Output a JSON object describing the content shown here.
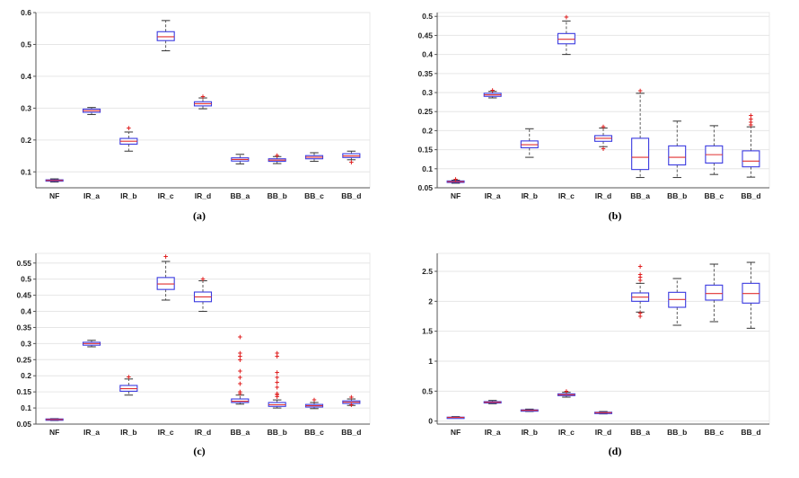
{
  "colors": {
    "box": "#3a3ae0",
    "median": "#e03030",
    "whisker": "#333333",
    "outlier": "#e02020",
    "grid": "#e6e6e6",
    "axis": "#555555"
  },
  "chart_data": [
    {
      "type": "box",
      "caption": "(a)",
      "categories": [
        "NF",
        "IR_a",
        "IR_b",
        "IR_c",
        "IR_d",
        "BB_a",
        "BB_b",
        "BB_c",
        "BB_d"
      ],
      "ylim": [
        0.05,
        0.6
      ],
      "yticks": [
        0.1,
        0.2,
        0.3,
        0.4,
        0.5,
        0.6
      ],
      "ytick_labels": [
        "0.1",
        "0.2",
        "0.3",
        "0.4",
        "0.5",
        "0.6"
      ],
      "grid": true,
      "boxes": [
        {
          "min": 0.068,
          "q1": 0.071,
          "median": 0.073,
          "q3": 0.075,
          "max": 0.078,
          "outliers": []
        },
        {
          "min": 0.28,
          "q1": 0.287,
          "median": 0.292,
          "q3": 0.297,
          "max": 0.302,
          "outliers": []
        },
        {
          "min": 0.165,
          "q1": 0.187,
          "median": 0.196,
          "q3": 0.205,
          "max": 0.225,
          "outliers": [
            0.237
          ]
        },
        {
          "min": 0.48,
          "q1": 0.512,
          "median": 0.524,
          "q3": 0.54,
          "max": 0.575,
          "outliers": []
        },
        {
          "min": 0.298,
          "q1": 0.307,
          "median": 0.314,
          "q3": 0.32,
          "max": 0.332,
          "outliers": [
            0.336
          ]
        },
        {
          "min": 0.125,
          "q1": 0.134,
          "median": 0.139,
          "q3": 0.144,
          "max": 0.155,
          "outliers": []
        },
        {
          "min": 0.126,
          "q1": 0.133,
          "median": 0.137,
          "q3": 0.141,
          "max": 0.148,
          "outliers": [
            0.152
          ]
        },
        {
          "min": 0.133,
          "q1": 0.141,
          "median": 0.146,
          "q3": 0.151,
          "max": 0.16,
          "outliers": []
        },
        {
          "min": 0.138,
          "q1": 0.145,
          "median": 0.15,
          "q3": 0.157,
          "max": 0.165,
          "outliers": [
            0.131
          ]
        }
      ]
    },
    {
      "type": "box",
      "caption": "(b)",
      "categories": [
        "NF",
        "IR_a",
        "IR_b",
        "IR_c",
        "IR_d",
        "BB_a",
        "BB_b",
        "BB_c",
        "BB_d"
      ],
      "ylim": [
        0.05,
        0.51
      ],
      "yticks": [
        0.05,
        0.1,
        0.15,
        0.2,
        0.25,
        0.3,
        0.35,
        0.4,
        0.45,
        0.5
      ],
      "ytick_labels": [
        "0.05",
        "0.1",
        "0.15",
        "0.2",
        "0.25",
        "0.3",
        "0.35",
        "0.4",
        "0.45",
        "0.5"
      ],
      "grid": true,
      "boxes": [
        {
          "min": 0.062,
          "q1": 0.064,
          "median": 0.066,
          "q3": 0.068,
          "max": 0.07,
          "outliers": [
            0.073
          ]
        },
        {
          "min": 0.286,
          "q1": 0.29,
          "median": 0.294,
          "q3": 0.298,
          "max": 0.303,
          "outliers": [
            0.306
          ]
        },
        {
          "min": 0.13,
          "q1": 0.155,
          "median": 0.163,
          "q3": 0.173,
          "max": 0.205,
          "outliers": []
        },
        {
          "min": 0.4,
          "q1": 0.428,
          "median": 0.44,
          "q3": 0.455,
          "max": 0.488,
          "outliers": [
            0.498
          ]
        },
        {
          "min": 0.158,
          "q1": 0.172,
          "median": 0.18,
          "q3": 0.187,
          "max": 0.207,
          "outliers": [
            0.153,
            0.21
          ]
        },
        {
          "min": 0.077,
          "q1": 0.098,
          "median": 0.13,
          "q3": 0.18,
          "max": 0.298,
          "outliers": [
            0.305
          ]
        },
        {
          "min": 0.077,
          "q1": 0.11,
          "median": 0.13,
          "q3": 0.16,
          "max": 0.225,
          "outliers": []
        },
        {
          "min": 0.085,
          "q1": 0.115,
          "median": 0.137,
          "q3": 0.16,
          "max": 0.213,
          "outliers": []
        },
        {
          "min": 0.078,
          "q1": 0.105,
          "median": 0.12,
          "q3": 0.147,
          "max": 0.21,
          "outliers": [
            0.215,
            0.222,
            0.23,
            0.24
          ]
        }
      ]
    },
    {
      "type": "box",
      "caption": "(c)",
      "categories": [
        "NF",
        "IR_a",
        "IR_b",
        "IR_c",
        "IR_d",
        "BB_a",
        "BB_b",
        "BB_c",
        "BB_d"
      ],
      "ylim": [
        0.05,
        0.58
      ],
      "yticks": [
        0.05,
        0.1,
        0.15,
        0.2,
        0.25,
        0.3,
        0.35,
        0.4,
        0.45,
        0.5,
        0.55
      ],
      "ytick_labels": [
        "0.05",
        "0.1",
        "0.15",
        "0.2",
        "0.25",
        "0.3",
        "0.35",
        "0.4",
        "0.45",
        "0.5",
        "0.55"
      ],
      "grid": true,
      "boxes": [
        {
          "min": 0.061,
          "q1": 0.063,
          "median": 0.064,
          "q3": 0.066,
          "max": 0.067,
          "outliers": []
        },
        {
          "min": 0.29,
          "q1": 0.295,
          "median": 0.3,
          "q3": 0.304,
          "max": 0.31,
          "outliers": []
        },
        {
          "min": 0.14,
          "q1": 0.152,
          "median": 0.16,
          "q3": 0.17,
          "max": 0.19,
          "outliers": [
            0.196
          ]
        },
        {
          "min": 0.435,
          "q1": 0.468,
          "median": 0.485,
          "q3": 0.505,
          "max": 0.555,
          "outliers": [
            0.57
          ]
        },
        {
          "min": 0.4,
          "q1": 0.43,
          "median": 0.445,
          "q3": 0.46,
          "max": 0.495,
          "outliers": [
            0.5
          ]
        },
        {
          "min": 0.112,
          "q1": 0.117,
          "median": 0.121,
          "q3": 0.128,
          "max": 0.14,
          "outliers": [
            0.145,
            0.15,
            0.175,
            0.195,
            0.215,
            0.25,
            0.26,
            0.27,
            0.32
          ]
        },
        {
          "min": 0.1,
          "q1": 0.105,
          "median": 0.11,
          "q3": 0.117,
          "max": 0.125,
          "outliers": [
            0.135,
            0.14,
            0.145,
            0.165,
            0.18,
            0.195,
            0.21,
            0.26,
            0.27
          ]
        },
        {
          "min": 0.098,
          "q1": 0.103,
          "median": 0.107,
          "q3": 0.111,
          "max": 0.117,
          "outliers": [
            0.125
          ]
        },
        {
          "min": 0.108,
          "q1": 0.114,
          "median": 0.118,
          "q3": 0.122,
          "max": 0.128,
          "outliers": [
            0.11,
            0.133
          ]
        }
      ]
    },
    {
      "type": "box",
      "caption": "(d)",
      "categories": [
        "NF",
        "IR_a",
        "IR_b",
        "IR_c",
        "IR_d",
        "BB_a",
        "BB_b",
        "BB_c",
        "BB_d"
      ],
      "ylim": [
        -0.05,
        2.8
      ],
      "yticks": [
        0,
        0.5,
        1,
        1.5,
        2,
        2.5
      ],
      "ytick_labels": [
        "0",
        "0.5",
        "1",
        "1.5",
        "2",
        "2.5"
      ],
      "grid": true,
      "boxes": [
        {
          "min": 0.05,
          "q1": 0.058,
          "median": 0.062,
          "q3": 0.066,
          "max": 0.075,
          "outliers": []
        },
        {
          "min": 0.29,
          "q1": 0.305,
          "median": 0.315,
          "q3": 0.325,
          "max": 0.345,
          "outliers": []
        },
        {
          "min": 0.16,
          "q1": 0.172,
          "median": 0.18,
          "q3": 0.188,
          "max": 0.2,
          "outliers": []
        },
        {
          "min": 0.4,
          "q1": 0.425,
          "median": 0.44,
          "q3": 0.455,
          "max": 0.48,
          "outliers": [
            0.5
          ]
        },
        {
          "min": 0.12,
          "q1": 0.132,
          "median": 0.14,
          "q3": 0.148,
          "max": 0.16,
          "outliers": []
        },
        {
          "min": 1.82,
          "q1": 2.0,
          "median": 2.07,
          "q3": 2.14,
          "max": 2.3,
          "outliers": [
            1.75,
            1.8,
            2.35,
            2.4,
            2.45,
            2.58
          ]
        },
        {
          "min": 1.6,
          "q1": 1.9,
          "median": 2.03,
          "q3": 2.15,
          "max": 2.38,
          "outliers": []
        },
        {
          "min": 1.66,
          "q1": 2.02,
          "median": 2.13,
          "q3": 2.27,
          "max": 2.62,
          "outliers": []
        },
        {
          "min": 1.55,
          "q1": 1.97,
          "median": 2.13,
          "q3": 2.3,
          "max": 2.65,
          "outliers": []
        }
      ]
    }
  ]
}
